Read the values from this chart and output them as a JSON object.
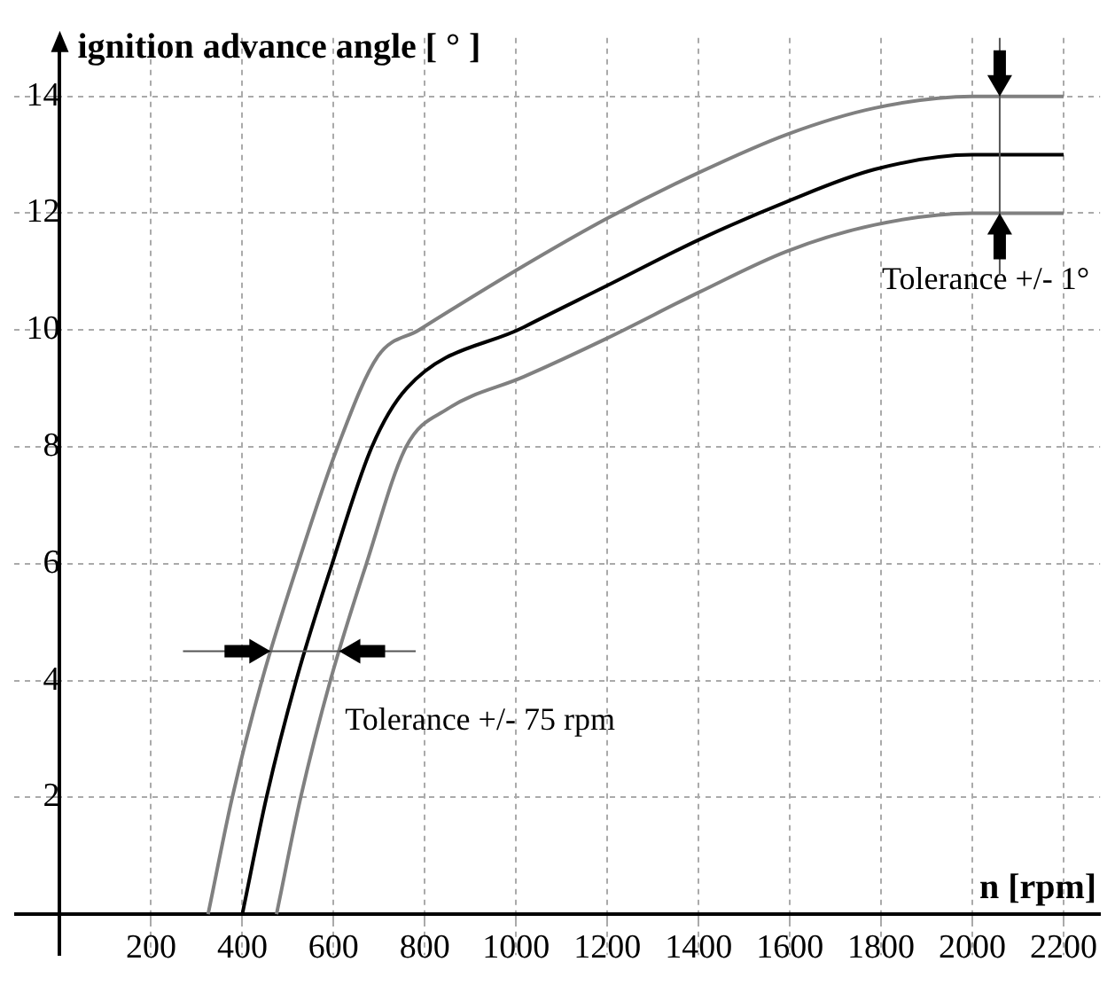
{
  "chart_data": {
    "type": "line",
    "ylabel": "ignition advance angle [ ° ]",
    "xlabel": "n [rpm]",
    "xlim": [
      -100,
      2280
    ],
    "ylim": [
      -0.7,
      15
    ],
    "xticks": [
      200,
      400,
      600,
      800,
      1000,
      1200,
      1400,
      1600,
      1800,
      2000,
      2200
    ],
    "yticks": [
      2,
      4,
      6,
      8,
      10,
      12,
      14
    ],
    "grid": true,
    "legend": false,
    "marker": "none",
    "line_style": "solid",
    "series": [
      {
        "color": "#808080",
        "x": [
          325,
          378,
          443,
          522,
          609,
          697,
          787,
          1017,
          1197,
          1402,
          1594,
          1786,
          2000,
          2200
        ],
        "values": [
          0,
          2,
          4,
          6,
          8,
          9.55,
          10,
          11.1,
          11.9,
          12.7,
          13.35,
          13.8,
          14,
          14
        ]
      },
      {
        "color": "#000000",
        "x": [
          400,
          453,
          518,
          597,
          684,
          760,
          1017,
          1197,
          1402,
          1594,
          1786,
          2000,
          2200
        ],
        "values": [
          0,
          2,
          4,
          6,
          8,
          9,
          10.05,
          10.75,
          11.55,
          12.2,
          12.75,
          13,
          13
        ]
      },
      {
        "color": "#808080",
        "x": [
          475,
          528,
          593,
          672,
          759,
          850,
          1017,
          1197,
          1402,
          1594,
          1786,
          2000,
          2200
        ],
        "values": [
          0,
          2,
          4,
          6,
          8,
          8.65,
          9.2,
          9.85,
          10.65,
          11.35,
          11.8,
          12,
          12
        ]
      }
    ],
    "annotations": [
      "Tolerance +/- 1°",
      "Tolerance +/- 75 rpm"
    ]
  }
}
